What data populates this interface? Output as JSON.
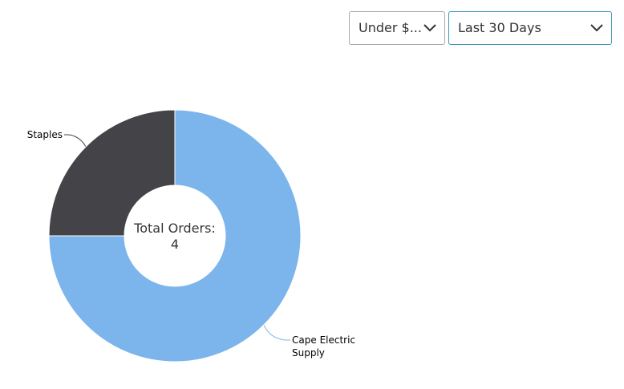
{
  "filters": {
    "amount": "Under $...",
    "period": "Last 30 Days"
  },
  "chart_data": {
    "type": "donut",
    "categories": [
      "Cape Electric Supply",
      "Staples"
    ],
    "values": [
      3,
      1
    ],
    "colors": [
      "#7cb5ec",
      "#434348"
    ],
    "center_label": "Total Orders:",
    "center_value": 4
  }
}
